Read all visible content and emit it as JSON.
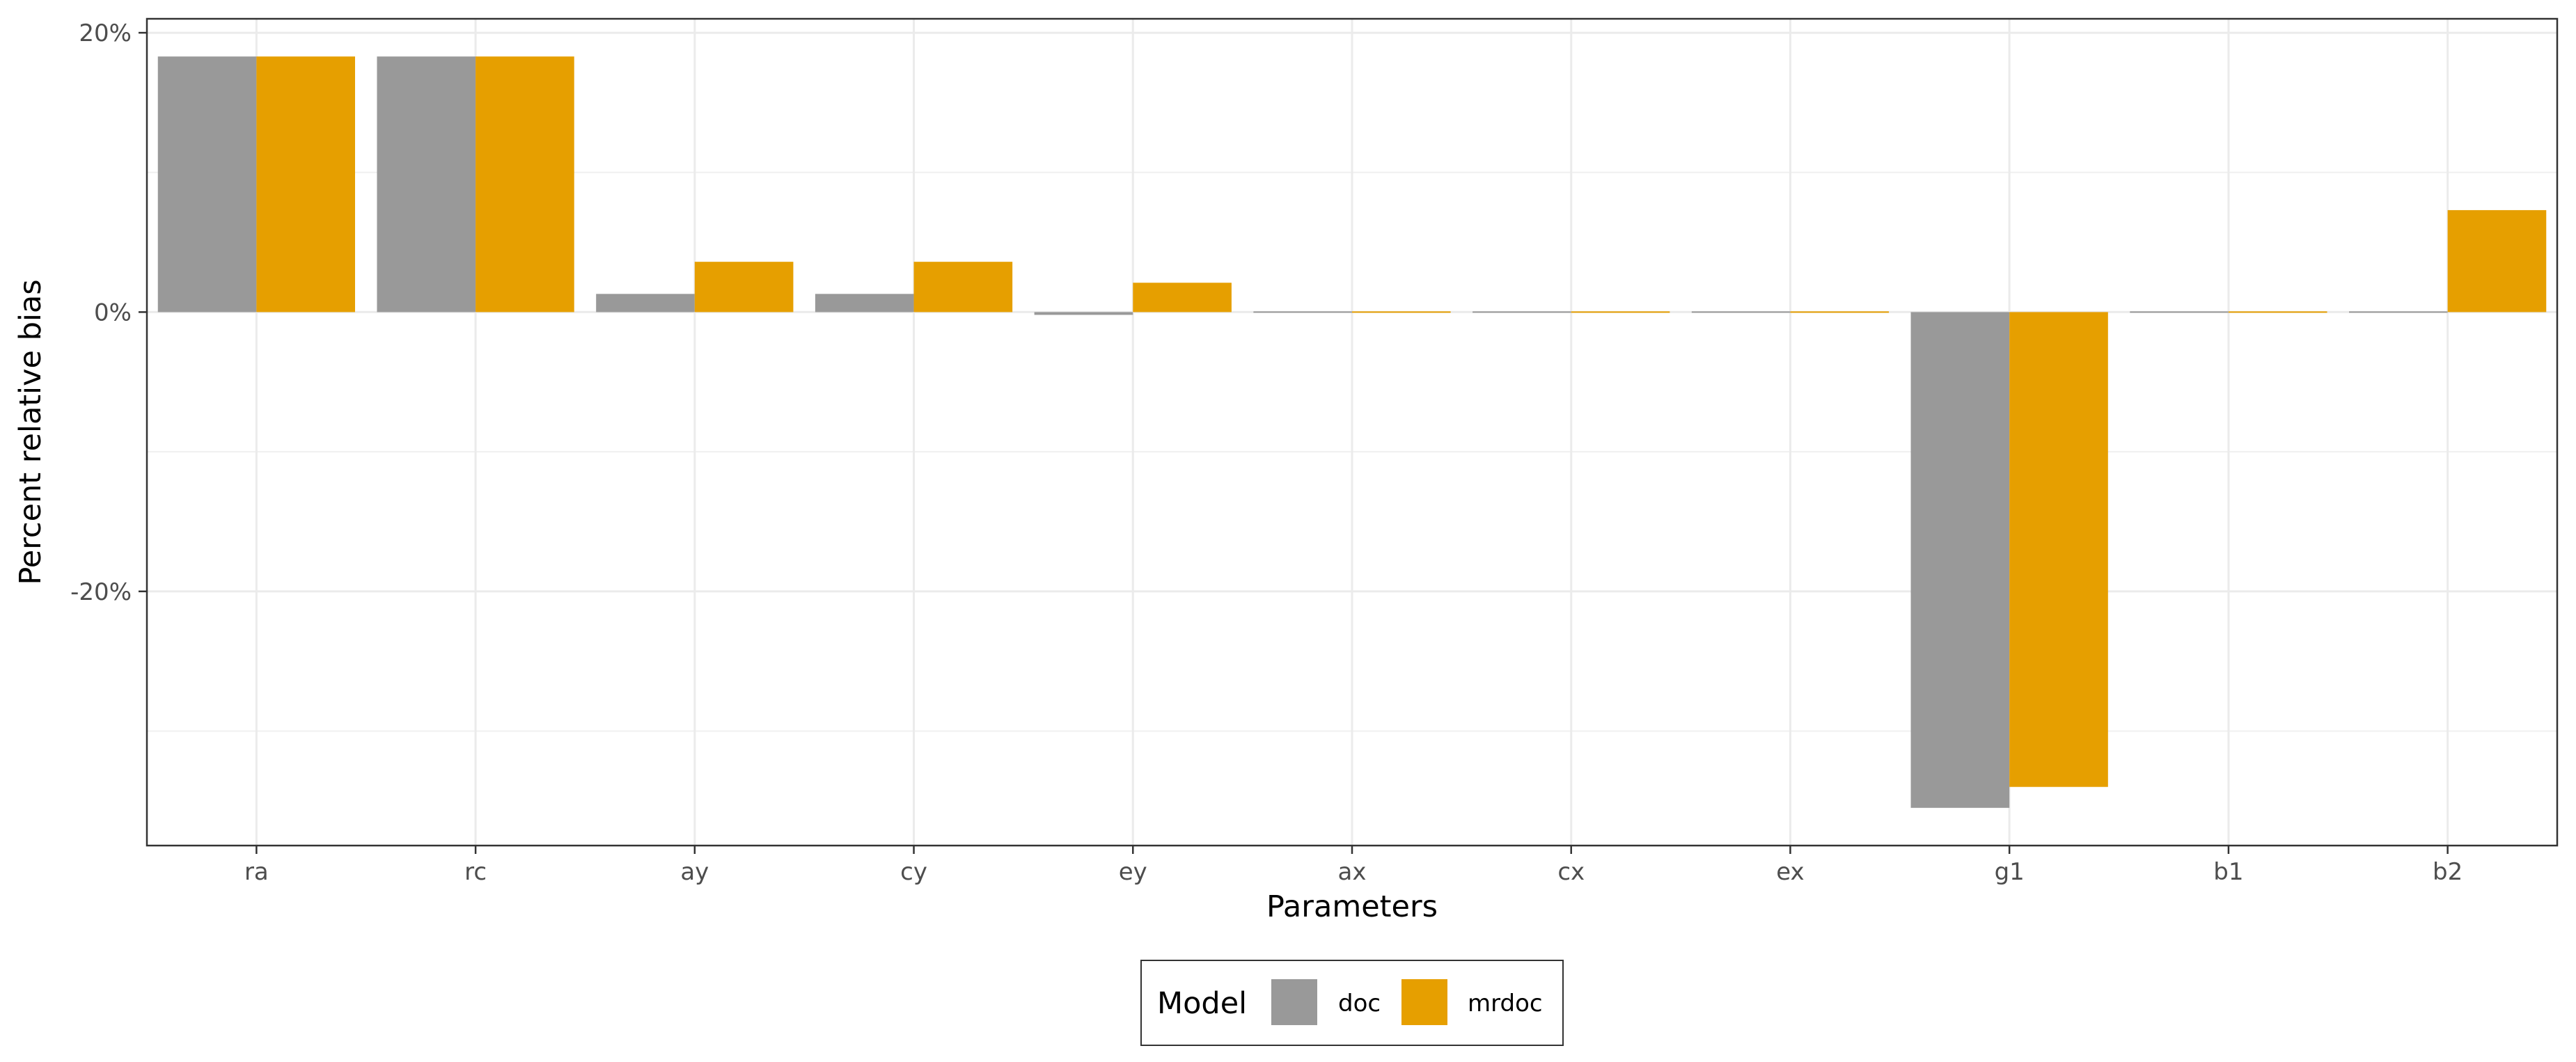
{
  "chart_data": {
    "type": "bar",
    "xlabel": "Parameters",
    "ylabel": "Percent relative bias",
    "categories": [
      "ra",
      "rc",
      "ay",
      "cy",
      "ey",
      "ax",
      "cx",
      "ex",
      "g1",
      "b1",
      "b2"
    ],
    "series": [
      {
        "name": "doc",
        "color": "#999999",
        "values": [
          18.3,
          18.3,
          1.3,
          1.3,
          -0.2,
          0.0,
          0.0,
          0.0,
          -35.5,
          0.0,
          0.0
        ]
      },
      {
        "name": "mrdoc",
        "color": "#E69F00",
        "values": [
          18.3,
          18.3,
          3.6,
          3.6,
          2.1,
          0.0,
          0.0,
          0.0,
          -34.0,
          0.0,
          7.3
        ]
      }
    ],
    "y_ticks": [
      {
        "value": 20,
        "label": "20%"
      },
      {
        "value": 0,
        "label": "0%"
      },
      {
        "value": -20,
        "label": "-20%"
      }
    ],
    "ylim": [
      -38.2,
      21.0
    ],
    "grid": true,
    "legend": {
      "title": "Model",
      "position": "bottom"
    }
  }
}
